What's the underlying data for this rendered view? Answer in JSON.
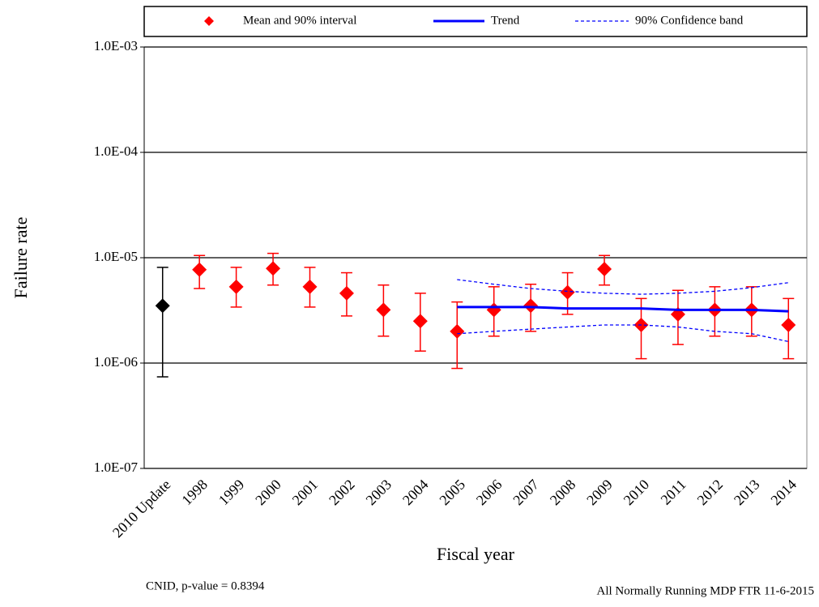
{
  "chart_data": {
    "type": "errorbar",
    "title": null,
    "x_label": "Fiscal year",
    "y_label": "Failure rate",
    "categories": [
      "2010 Update",
      "1998",
      "1999",
      "2000",
      "2001",
      "2002",
      "2003",
      "2004",
      "2005",
      "2006",
      "2007",
      "2008",
      "2009",
      "2010",
      "2011",
      "2012",
      "2013",
      "2014"
    ],
    "ylim": [
      1e-07,
      0.001
    ],
    "log_y": true,
    "grid": true,
    "yticks": [
      {
        "value": 1e-07,
        "label": "1.0E-07"
      },
      {
        "value": 1e-06,
        "label": "1.0E-06"
      },
      {
        "value": 1e-05,
        "label": "1.0E-05"
      },
      {
        "value": 0.0001,
        "label": "1.0E-04"
      },
      {
        "value": 0.001,
        "label": "1.0E-03"
      }
    ],
    "series": [
      {
        "name": "Mean and 90% interval",
        "kind": "errorbar",
        "color": "#ff0000",
        "marker_colors": [
          "#000000",
          "#ff0000",
          "#ff0000",
          "#ff0000",
          "#ff0000",
          "#ff0000",
          "#ff0000",
          "#ff0000",
          "#ff0000",
          "#ff0000",
          "#ff0000",
          "#ff0000",
          "#ff0000",
          "#ff0000",
          "#ff0000",
          "#ff0000",
          "#ff0000",
          "#ff0000"
        ],
        "values": [
          3.5e-06,
          7.7e-06,
          5.3e-06,
          7.9e-06,
          5.3e-06,
          4.6e-06,
          3.2e-06,
          2.5e-06,
          2e-06,
          3.2e-06,
          3.5e-06,
          4.7e-06,
          7.8e-06,
          2.3e-06,
          2.9e-06,
          3.2e-06,
          3.2e-06,
          2.3e-06
        ],
        "lower": [
          7.4e-07,
          5.1e-06,
          3.4e-06,
          5.5e-06,
          3.4e-06,
          2.8e-06,
          1.8e-06,
          1.3e-06,
          8.9e-07,
          1.8e-06,
          2e-06,
          2.9e-06,
          5.5e-06,
          1.1e-06,
          1.5e-06,
          1.8e-06,
          1.8e-06,
          1.1e-06
        ],
        "upper": [
          8.1e-06,
          1.05e-05,
          8.1e-06,
          1.1e-05,
          8.1e-06,
          7.2e-06,
          5.5e-06,
          4.6e-06,
          3.8e-06,
          5.3e-06,
          5.6e-06,
          7.2e-06,
          1.05e-05,
          4.1e-06,
          4.9e-06,
          5.3e-06,
          5.3e-06,
          4.1e-06
        ]
      },
      {
        "name": "Trend",
        "kind": "line",
        "color": "#0000ff",
        "values": [
          null,
          null,
          null,
          null,
          null,
          null,
          null,
          null,
          3.4e-06,
          3.4e-06,
          3.4e-06,
          3.3e-06,
          3.3e-06,
          3.3e-06,
          3.2e-06,
          3.2e-06,
          3.2e-06,
          3.1e-06
        ]
      },
      {
        "name": "90% Confidence band",
        "kind": "band",
        "color": "#0000ff",
        "upper": [
          null,
          null,
          null,
          null,
          null,
          null,
          null,
          null,
          6.2e-06,
          5.6e-06,
          5.1e-06,
          4.8e-06,
          4.6e-06,
          4.5e-06,
          4.6e-06,
          4.8e-06,
          5.2e-06,
          5.8e-06
        ],
        "lower": [
          null,
          null,
          null,
          null,
          null,
          null,
          null,
          null,
          1.9e-06,
          2e-06,
          2.1e-06,
          2.2e-06,
          2.3e-06,
          2.3e-06,
          2.2e-06,
          2e-06,
          1.9e-06,
          1.6e-06
        ]
      }
    ],
    "footnote_left": "CNID, p-value = 0.8394",
    "footnote_right": "All Normally Running MDP FTR 11-6-2015"
  }
}
